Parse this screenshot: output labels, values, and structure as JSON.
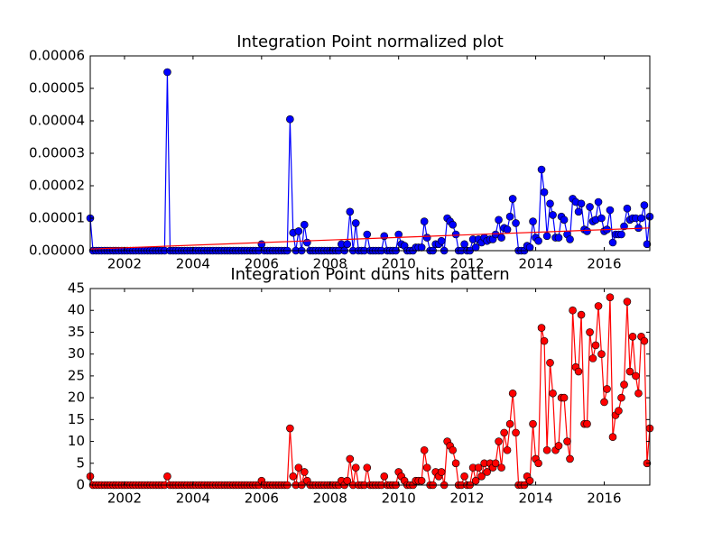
{
  "chart_data": [
    {
      "type": "line",
      "title": "Integration Point normalized plot",
      "x": [
        2001.0,
        2001.08,
        2001.17,
        2001.25,
        2001.33,
        2001.42,
        2001.5,
        2001.58,
        2001.67,
        2001.75,
        2001.83,
        2001.92,
        2002.0,
        2002.08,
        2002.17,
        2002.25,
        2002.33,
        2002.42,
        2002.5,
        2002.58,
        2002.67,
        2002.75,
        2002.83,
        2002.92,
        2003.0,
        2003.08,
        2003.17,
        2003.25,
        2003.33,
        2003.42,
        2003.5,
        2003.58,
        2003.67,
        2003.75,
        2003.83,
        2003.92,
        2004.0,
        2004.08,
        2004.17,
        2004.25,
        2004.33,
        2004.42,
        2004.5,
        2004.58,
        2004.67,
        2004.75,
        2004.83,
        2004.92,
        2005.0,
        2005.08,
        2005.17,
        2005.25,
        2005.33,
        2005.42,
        2005.5,
        2005.58,
        2005.67,
        2005.75,
        2005.83,
        2005.92,
        2006.0,
        2006.08,
        2006.17,
        2006.25,
        2006.33,
        2006.42,
        2006.5,
        2006.58,
        2006.67,
        2006.75,
        2006.83,
        2006.92,
        2007.0,
        2007.08,
        2007.17,
        2007.25,
        2007.33,
        2007.42,
        2007.5,
        2007.58,
        2007.67,
        2007.75,
        2007.83,
        2007.92,
        2008.0,
        2008.08,
        2008.17,
        2008.25,
        2008.33,
        2008.42,
        2008.5,
        2008.58,
        2008.67,
        2008.75,
        2008.83,
        2008.92,
        2009.0,
        2009.08,
        2009.17,
        2009.25,
        2009.33,
        2009.42,
        2009.5,
        2009.58,
        2009.67,
        2009.75,
        2009.83,
        2009.92,
        2010.0,
        2010.08,
        2010.17,
        2010.25,
        2010.33,
        2010.42,
        2010.5,
        2010.58,
        2010.67,
        2010.75,
        2010.83,
        2010.92,
        2011.0,
        2011.08,
        2011.17,
        2011.25,
        2011.33,
        2011.42,
        2011.5,
        2011.58,
        2011.67,
        2011.75,
        2011.83,
        2011.92,
        2012.0,
        2012.08,
        2012.17,
        2012.25,
        2012.33,
        2012.42,
        2012.5,
        2012.58,
        2012.67,
        2012.75,
        2012.83,
        2012.92,
        2013.0,
        2013.08,
        2013.17,
        2013.25,
        2013.33,
        2013.42,
        2013.5,
        2013.58,
        2013.67,
        2013.75,
        2013.83,
        2013.92,
        2014.0,
        2014.08,
        2014.17,
        2014.25,
        2014.33,
        2014.42,
        2014.5,
        2014.58,
        2014.67,
        2014.75,
        2014.83,
        2014.92,
        2015.0,
        2015.08,
        2015.17,
        2015.25,
        2015.33,
        2015.42,
        2015.5,
        2015.58,
        2015.67,
        2015.75,
        2015.83,
        2015.92,
        2016.0,
        2016.08,
        2016.17,
        2016.25,
        2016.33,
        2016.42,
        2016.5,
        2016.58,
        2016.67,
        2016.75,
        2016.83,
        2016.92,
        2017.0,
        2017.08,
        2017.17,
        2017.25,
        2017.33
      ],
      "series": [
        {
          "color": "#0000ff",
          "marker": true,
          "values": [
            1e-05,
            0,
            0,
            0,
            0,
            0,
            0,
            0,
            0,
            0,
            0,
            0,
            0,
            0,
            0,
            0,
            0,
            0,
            0,
            0,
            0,
            0,
            0,
            0,
            0,
            0,
            0,
            5.5e-05,
            0,
            0,
            0,
            0,
            0,
            0,
            0,
            0,
            0,
            0,
            0,
            0,
            0,
            0,
            0,
            0,
            0,
            0,
            0,
            0,
            0,
            0,
            0,
            0,
            0,
            0,
            0,
            0,
            0,
            0,
            0,
            0,
            2e-06,
            0,
            0,
            0,
            0,
            0,
            0,
            0,
            0,
            0,
            4.05e-05,
            5.5e-06,
            0,
            6e-06,
            0,
            8e-06,
            2.5e-06,
            0,
            0,
            0,
            0,
            0,
            0,
            0,
            0,
            0,
            0,
            0,
            2e-06,
            0,
            2e-06,
            1.2e-05,
            0,
            8.5e-06,
            0,
            0,
            0,
            5e-06,
            0,
            0,
            0,
            0,
            0,
            4.5e-06,
            0,
            0,
            0,
            0,
            5e-06,
            2e-06,
            1.5e-06,
            0,
            0,
            0,
            1e-06,
            1e-06,
            1e-06,
            9e-06,
            4e-06,
            0,
            0,
            2e-06,
            2e-06,
            3e-06,
            0,
            1e-05,
            9e-06,
            8e-06,
            5e-06,
            0,
            0,
            2e-06,
            0,
            0,
            3.5e-06,
            1e-06,
            3.5e-06,
            2.5e-06,
            4e-06,
            3e-06,
            3.5e-06,
            3.5e-06,
            5e-06,
            9.5e-06,
            4e-06,
            7e-06,
            6.5e-06,
            1.05e-05,
            1.6e-05,
            8.5e-06,
            0,
            0,
            0,
            1.5e-06,
            1e-06,
            9e-06,
            4e-06,
            3e-06,
            2.5e-05,
            1.8e-05,
            4.5e-06,
            1.45e-05,
            1.1e-05,
            4e-06,
            4e-06,
            1.05e-05,
            9.5e-06,
            5e-06,
            3.5e-06,
            1.6e-05,
            1.5e-05,
            1.2e-05,
            1.45e-05,
            6.5e-06,
            6e-06,
            1.35e-05,
            9e-06,
            9.5e-06,
            1.5e-05,
            1e-05,
            6e-06,
            6.5e-06,
            1.25e-05,
            2.5e-06,
            5e-06,
            5e-06,
            5e-06,
            7.5e-06,
            1.3e-05,
            9.5e-06,
            1e-05,
            1e-05,
            7e-06,
            1e-05,
            1.4e-05,
            2e-06,
            1.05e-05
          ]
        },
        {
          "color": "#ff0000",
          "marker": false,
          "x": [
            2001.0,
            2017.33
          ],
          "values": [
            5e-07,
            7e-06
          ]
        }
      ],
      "xlim": [
        2001.0,
        2017.33
      ],
      "xticks": [
        2002,
        2004,
        2006,
        2008,
        2010,
        2012,
        2014,
        2016
      ],
      "ylim": [
        0,
        6e-05
      ],
      "yticks": [
        {
          "value": 0,
          "label": "0.00000"
        },
        1e-05,
        2e-05,
        3e-05,
        4e-05,
        5e-05,
        6e-05
      ]
    },
    {
      "type": "line",
      "title": "Integration Point duns hits pattern",
      "x": [
        2001.0,
        2001.08,
        2001.17,
        2001.25,
        2001.33,
        2001.42,
        2001.5,
        2001.58,
        2001.67,
        2001.75,
        2001.83,
        2001.92,
        2002.0,
        2002.08,
        2002.17,
        2002.25,
        2002.33,
        2002.42,
        2002.5,
        2002.58,
        2002.67,
        2002.75,
        2002.83,
        2002.92,
        2003.0,
        2003.08,
        2003.17,
        2003.25,
        2003.33,
        2003.42,
        2003.5,
        2003.58,
        2003.67,
        2003.75,
        2003.83,
        2003.92,
        2004.0,
        2004.08,
        2004.17,
        2004.25,
        2004.33,
        2004.42,
        2004.5,
        2004.58,
        2004.67,
        2004.75,
        2004.83,
        2004.92,
        2005.0,
        2005.08,
        2005.17,
        2005.25,
        2005.33,
        2005.42,
        2005.5,
        2005.58,
        2005.67,
        2005.75,
        2005.83,
        2005.92,
        2006.0,
        2006.08,
        2006.17,
        2006.25,
        2006.33,
        2006.42,
        2006.5,
        2006.58,
        2006.67,
        2006.75,
        2006.83,
        2006.92,
        2007.0,
        2007.08,
        2007.17,
        2007.25,
        2007.33,
        2007.42,
        2007.5,
        2007.58,
        2007.67,
        2007.75,
        2007.83,
        2007.92,
        2008.0,
        2008.08,
        2008.17,
        2008.25,
        2008.33,
        2008.42,
        2008.5,
        2008.58,
        2008.67,
        2008.75,
        2008.83,
        2008.92,
        2009.0,
        2009.08,
        2009.17,
        2009.25,
        2009.33,
        2009.42,
        2009.5,
        2009.58,
        2009.67,
        2009.75,
        2009.83,
        2009.92,
        2010.0,
        2010.08,
        2010.17,
        2010.25,
        2010.33,
        2010.42,
        2010.5,
        2010.58,
        2010.67,
        2010.75,
        2010.83,
        2010.92,
        2011.0,
        2011.08,
        2011.17,
        2011.25,
        2011.33,
        2011.42,
        2011.5,
        2011.58,
        2011.67,
        2011.75,
        2011.83,
        2011.92,
        2012.0,
        2012.08,
        2012.17,
        2012.25,
        2012.33,
        2012.42,
        2012.5,
        2012.58,
        2012.67,
        2012.75,
        2012.83,
        2012.92,
        2013.0,
        2013.08,
        2013.17,
        2013.25,
        2013.33,
        2013.42,
        2013.5,
        2013.58,
        2013.67,
        2013.75,
        2013.83,
        2013.92,
        2014.0,
        2014.08,
        2014.17,
        2014.25,
        2014.33,
        2014.42,
        2014.5,
        2014.58,
        2014.67,
        2014.75,
        2014.83,
        2014.92,
        2015.0,
        2015.08,
        2015.17,
        2015.25,
        2015.33,
        2015.42,
        2015.5,
        2015.58,
        2015.67,
        2015.75,
        2015.83,
        2015.92,
        2016.0,
        2016.08,
        2016.17,
        2016.25,
        2016.33,
        2016.42,
        2016.5,
        2016.58,
        2016.67,
        2016.75,
        2016.83,
        2016.92,
        2017.0,
        2017.08,
        2017.17,
        2017.25,
        2017.33
      ],
      "series": [
        {
          "color": "#ff0000",
          "marker": true,
          "values": [
            2,
            0,
            0,
            0,
            0,
            0,
            0,
            0,
            0,
            0,
            0,
            0,
            0,
            0,
            0,
            0,
            0,
            0,
            0,
            0,
            0,
            0,
            0,
            0,
            0,
            0,
            0,
            2,
            0,
            0,
            0,
            0,
            0,
            0,
            0,
            0,
            0,
            0,
            0,
            0,
            0,
            0,
            0,
            0,
            0,
            0,
            0,
            0,
            0,
            0,
            0,
            0,
            0,
            0,
            0,
            0,
            0,
            0,
            0,
            0,
            1,
            0,
            0,
            0,
            0,
            0,
            0,
            0,
            0,
            0,
            13,
            2,
            0,
            4,
            0,
            3,
            1,
            0,
            0,
            0,
            0,
            0,
            0,
            0,
            0,
            0,
            0,
            0,
            1,
            0,
            1,
            6,
            0,
            4,
            0,
            0,
            0,
            4,
            0,
            0,
            0,
            0,
            0,
            2,
            0,
            0,
            0,
            0,
            3,
            2,
            1,
            0,
            0,
            0,
            1,
            1,
            1,
            8,
            4,
            0,
            0,
            3,
            2,
            3,
            0,
            10,
            9,
            8,
            5,
            0,
            0,
            2,
            0,
            0,
            4,
            1,
            4,
            2,
            5,
            3,
            5,
            4,
            5,
            10,
            4,
            12,
            8,
            14,
            21,
            12,
            0,
            0,
            0,
            2,
            1,
            14,
            6,
            5,
            36,
            33,
            8,
            28,
            21,
            8,
            9,
            20,
            20,
            10,
            6,
            40,
            27,
            26,
            39,
            14,
            14,
            35,
            29,
            32,
            41,
            30,
            19,
            22,
            43,
            11,
            16,
            17,
            20,
            23,
            42,
            26,
            34,
            25,
            21,
            34,
            33,
            5,
            13
          ]
        }
      ],
      "xlim": [
        2001.0,
        2017.33
      ],
      "xticks": [
        2002,
        2004,
        2006,
        2008,
        2010,
        2012,
        2014,
        2016
      ],
      "ylim": [
        0,
        45
      ],
      "yticks": [
        0,
        5,
        10,
        15,
        20,
        25,
        30,
        35,
        40,
        45
      ]
    }
  ]
}
